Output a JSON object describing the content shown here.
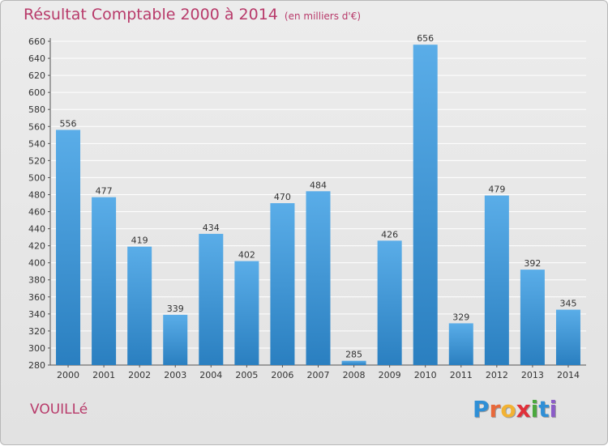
{
  "header": {
    "title": "Résultat Comptable 2000 à 2014",
    "subtitle": "(en milliers d'€)"
  },
  "footer": {
    "commune": "VOUILLé",
    "logo_letters": [
      "P",
      "r",
      "o",
      "x",
      "i",
      "t",
      "i"
    ],
    "logo_colors": [
      "#2f8fd6",
      "#e8683a",
      "#f2b233",
      "#e0303a",
      "#4aa83e",
      "#2f8fd6",
      "#8b5cc7"
    ]
  },
  "colors": {
    "bar_top": "#5aade8",
    "bar_bottom": "#2a7fc0",
    "grid": "#ffffff",
    "axis": "#555555"
  },
  "chart_data": {
    "type": "bar",
    "title": "Résultat Comptable 2000 à 2014",
    "subtitle": "(en milliers d'€)",
    "xlabel": "",
    "ylabel": "",
    "categories": [
      "2000",
      "2001",
      "2002",
      "2003",
      "2004",
      "2005",
      "2006",
      "2007",
      "2008",
      "2009",
      "2010",
      "2011",
      "2012",
      "2013",
      "2014"
    ],
    "values": [
      556,
      477,
      419,
      339,
      434,
      402,
      470,
      484,
      285,
      426,
      656,
      329,
      479,
      392,
      345
    ],
    "ylim": [
      280,
      660
    ],
    "ytick_step": 20,
    "grid": true
  }
}
